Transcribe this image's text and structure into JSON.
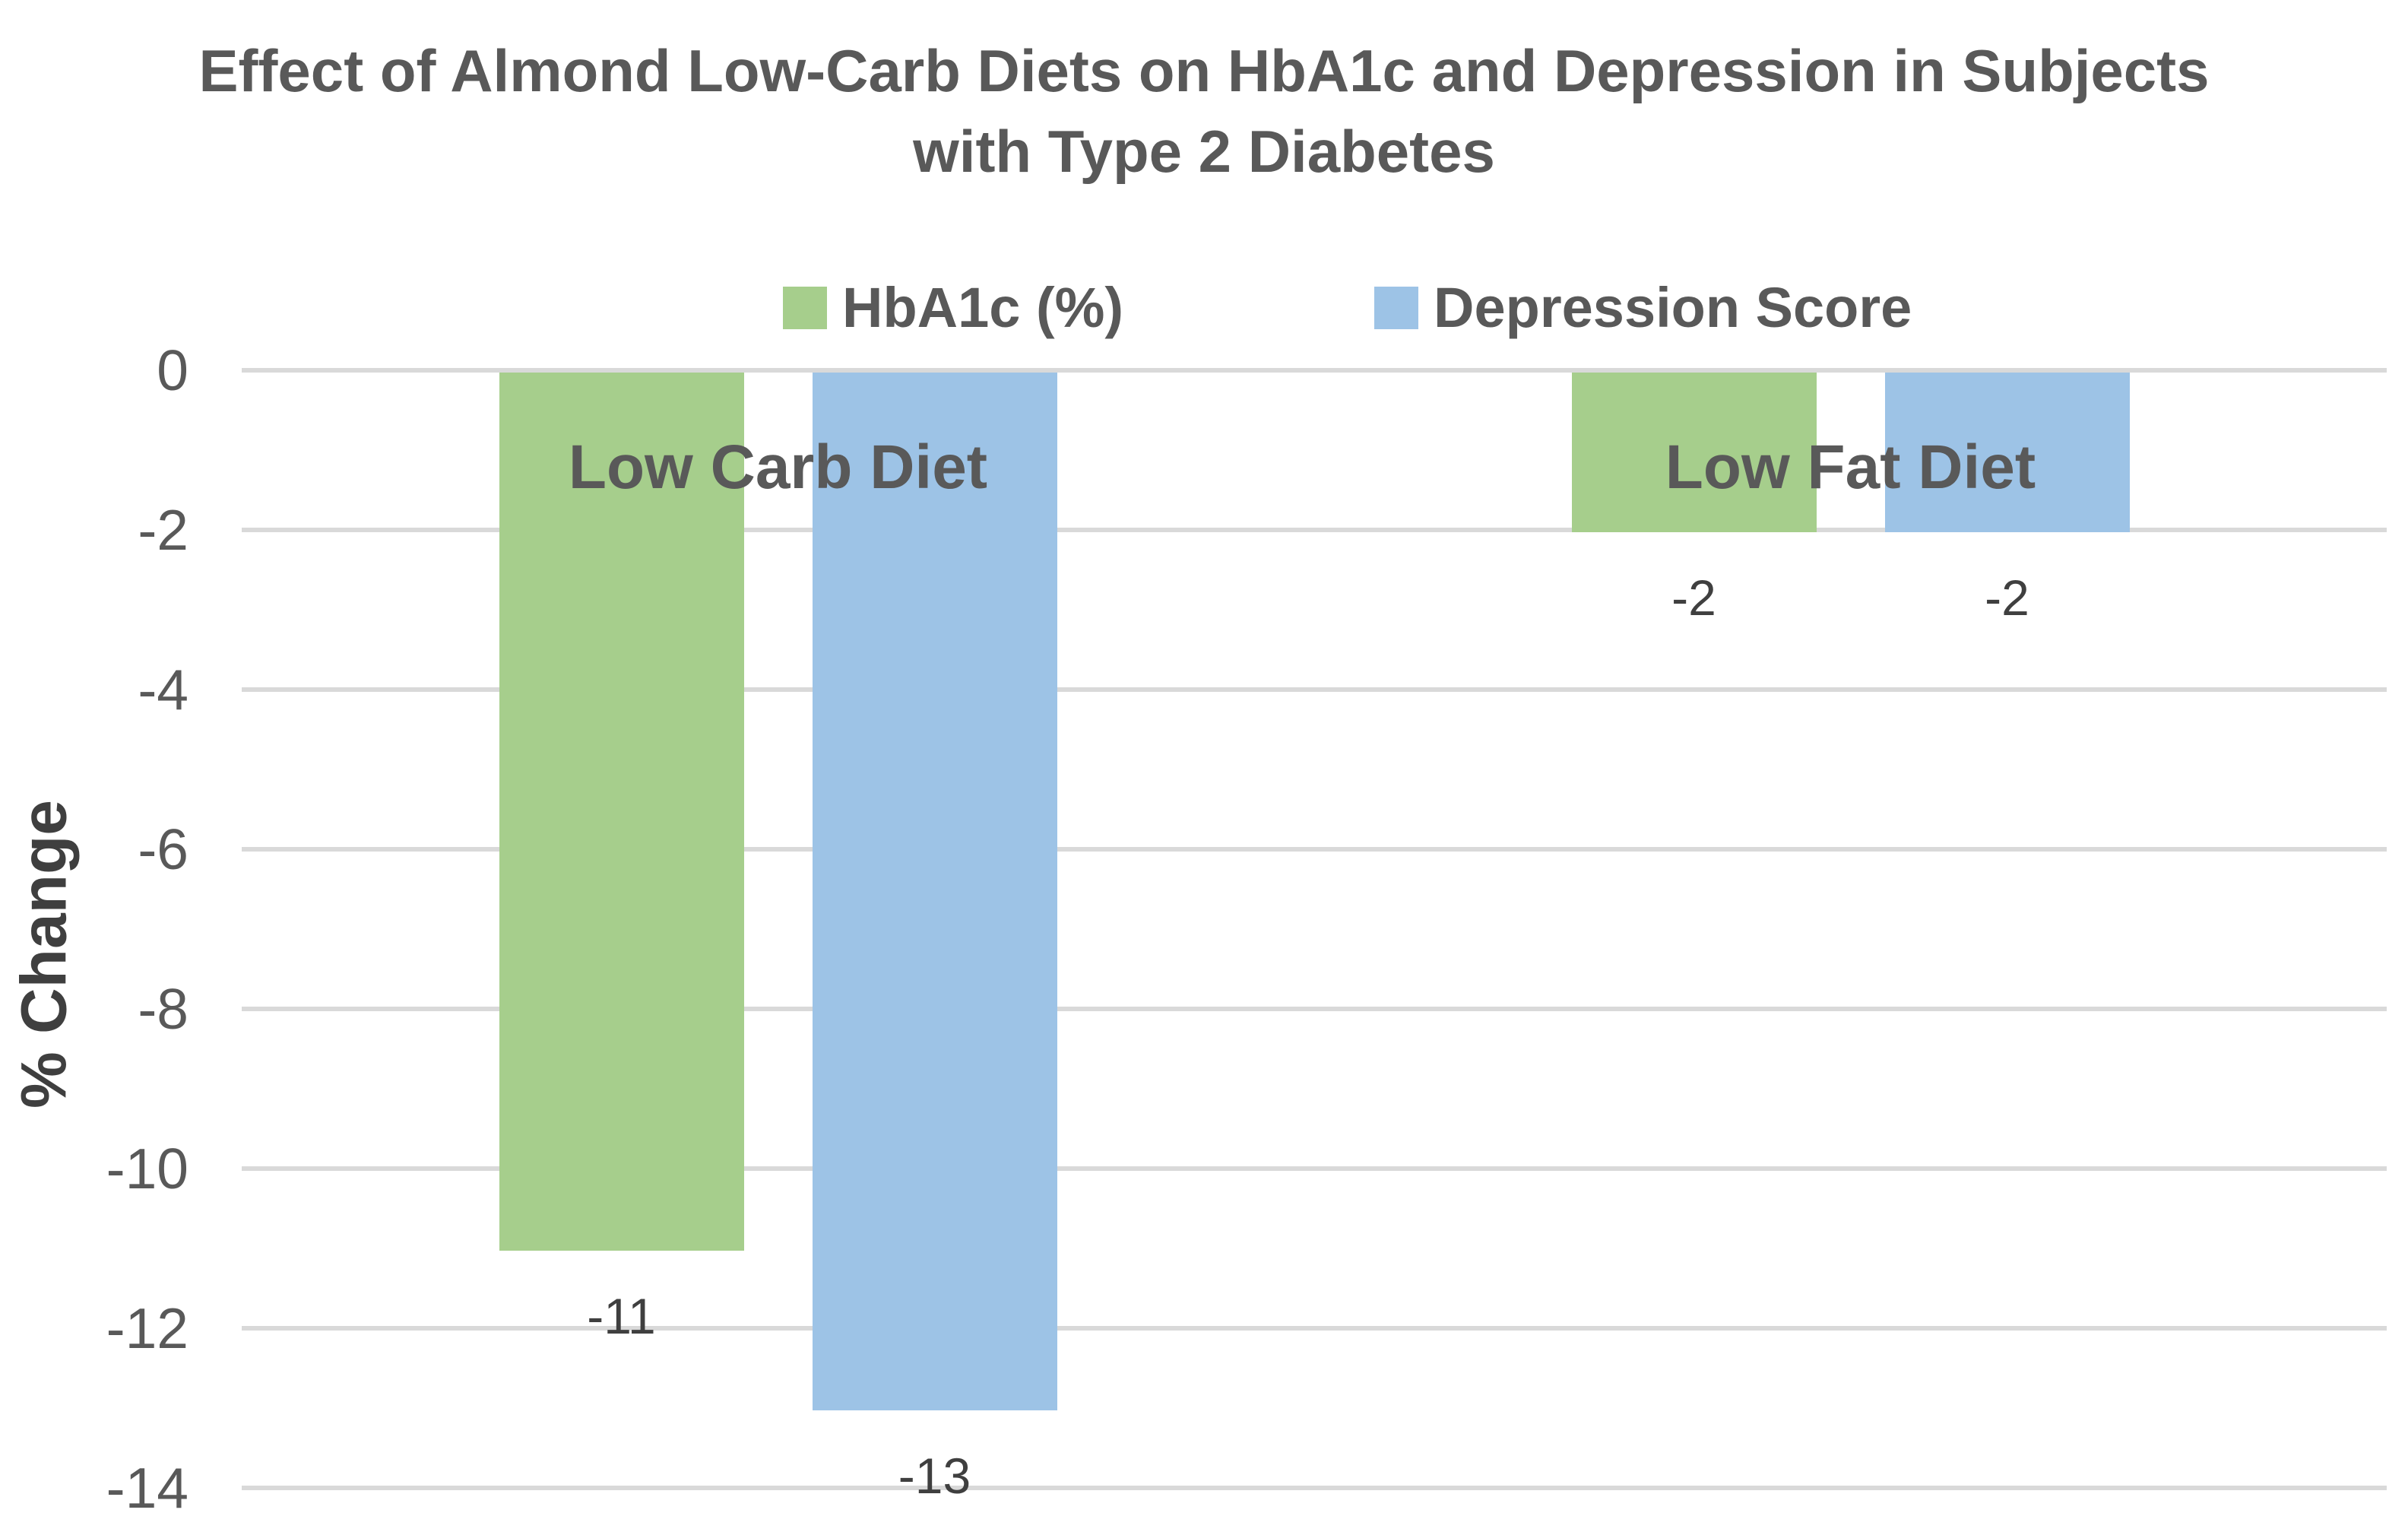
{
  "chart_data": {
    "type": "bar",
    "title": "Effect of Almond Low-Carb Diets on HbA1c and Depression in Subjects with Type 2 Diabetes",
    "ylabel": "% Change",
    "categories": [
      "Low Carb Diet",
      "Low Fat Diet"
    ],
    "series": [
      {
        "name": "HbA1c (%)",
        "color": "#A6CE8C",
        "values": [
          -11,
          -2
        ]
      },
      {
        "name": "Depression Score",
        "color": "#9DC3E6",
        "values": [
          -13,
          -2
        ]
      }
    ],
    "data_labels": {
      "series_0": [
        "-11",
        "-2"
      ],
      "series_1": [
        "-13",
        "-2"
      ]
    },
    "ylim": [
      -14,
      0
    ],
    "ytick_step": 2,
    "yticks": [
      "0",
      "-2",
      "-4",
      "-6",
      "-8",
      "-10",
      "-12",
      "-14"
    ],
    "grid": true,
    "legend_position": "top-center",
    "colors": {
      "gridline": "#D9D9D9",
      "axis_text": "#595959",
      "data_label_text": "#3F3F3F",
      "background": "#FFFFFF"
    }
  }
}
